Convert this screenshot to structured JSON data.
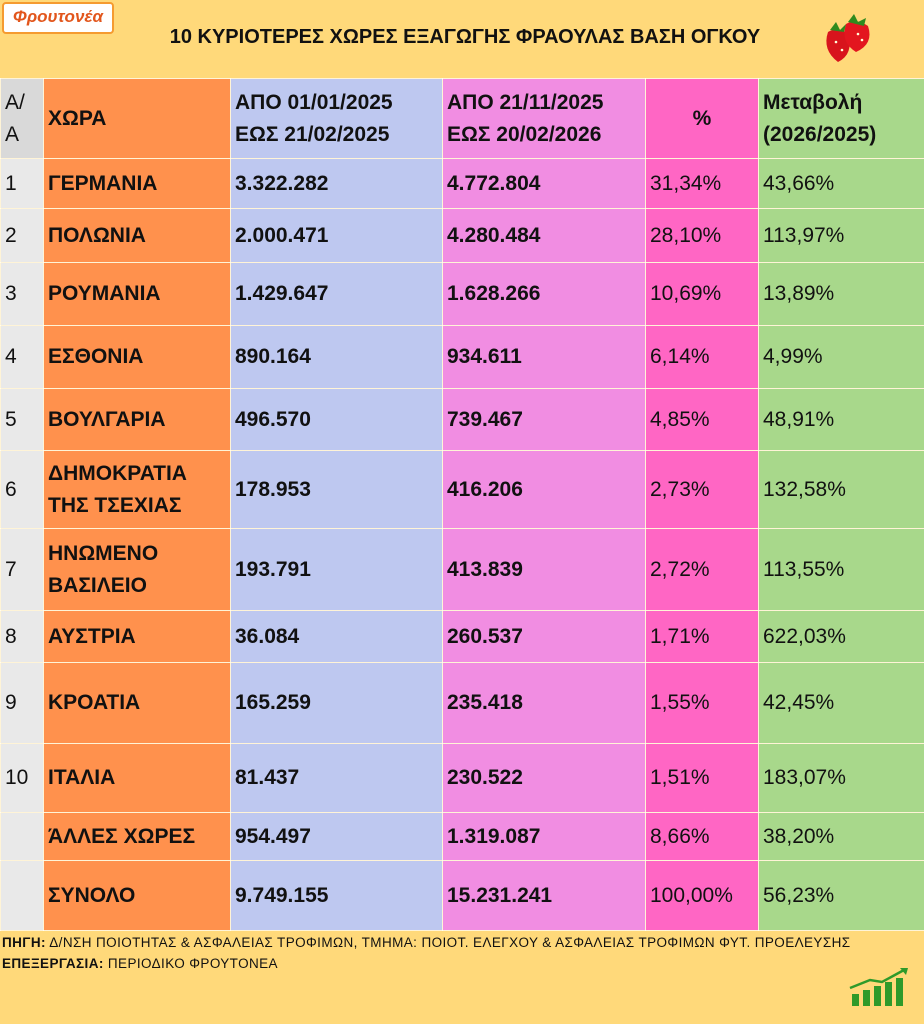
{
  "logo": {
    "name": "Φρουτονέα"
  },
  "header": {
    "title": "10 ΚΥΡΙΟΤΕΡΕΣ ΧΩΡΕΣ ΕΞΑΓΩΓΗΣ ΦΡΑΟΥΛΑΣ ΒΑΣΗ ΟΓΚΟΥ"
  },
  "table": {
    "columns": [
      "Α/\nΑ",
      "ΧΩΡΑ",
      "ΑΠΟ 01/01/2025\nΕΩΣ  21/02/2025",
      "ΑΠΟ 21/11/2025\nΕΩΣ  20/02/2026",
      "%",
      "Μεταβολή\n(2026/2025)"
    ],
    "rows": [
      [
        "1",
        "ΓΕΡΜΑΝΙΑ",
        "3.322.282",
        "4.772.804",
        "31,34%",
        "43,66%"
      ],
      [
        "2",
        "ΠΟΛΩΝΙΑ",
        "2.000.471",
        "4.280.484",
        "28,10%",
        "113,97%"
      ],
      [
        "3",
        "ΡΟΥΜΑΝΙΑ",
        "1.429.647",
        "1.628.266",
        "10,69%",
        "13,89%"
      ],
      [
        "4",
        "ΕΣΘΟΝΙΑ",
        "890.164",
        "934.611",
        "6,14%",
        "4,99%"
      ],
      [
        "5",
        "ΒΟΥΛΓΑΡΙΑ",
        "496.570",
        "739.467",
        "4,85%",
        "48,91%"
      ],
      [
        "6",
        "ΔΗΜΟΚΡΑΤΙΑ\nΤΗΣ ΤΣΕΧΙΑΣ",
        "178.953",
        "416.206",
        "2,73%",
        "132,58%"
      ],
      [
        "7",
        "ΗΝΩΜΕΝΟ\nΒΑΣΙΛΕΙΟ",
        "193.791",
        "413.839",
        "2,72%",
        "113,55%"
      ],
      [
        "8",
        "ΑΥΣΤΡΙΑ",
        "36.084",
        "260.537",
        "1,71%",
        "622,03%"
      ],
      [
        "9",
        "ΚΡΟΑΤΙΑ",
        "165.259",
        "235.418",
        "1,55%",
        "42,45%"
      ],
      [
        "10",
        "ΙΤΑΛΙΑ",
        "81.437",
        "230.522",
        "1,51%",
        "183,07%"
      ],
      [
        null,
        "ΆΛΛΕΣ ΧΩΡΕΣ",
        "954.497",
        "1.319.087",
        "8,66%",
        "38,20%"
      ],
      [
        null,
        "ΣΥΝΟΛΟ",
        "9.749.155",
        "15.231.241",
        "100,00%",
        "56,23%"
      ]
    ]
  },
  "footer": {
    "source_label": "ΠΗΓΗ:",
    "source": "Δ/ΝΣΗ ΠΟΙΟΤΗΤΑΣ & ΑΣΦΑΛΕΙΑΣ ΤΡΟΦΙΜΩΝ, ΤΜΗΜΑ: ΠΟΙΟΤ. ΕΛΕΓΧΟΥ & ΑΣΦΑΛΕΙΑΣ ΤΡΟΦΙΜΩΝ ΦΥΤ. ΠΡΟΕΛΕΥΣΗΣ",
    "processing_label": "ΕΠΕΞΕΡΓΑΣΙΑ:",
    "processing": "ΠΕΡΙΟΔΙΚΟ ΦΡΟΥΤΟΝΕΑ"
  }
}
